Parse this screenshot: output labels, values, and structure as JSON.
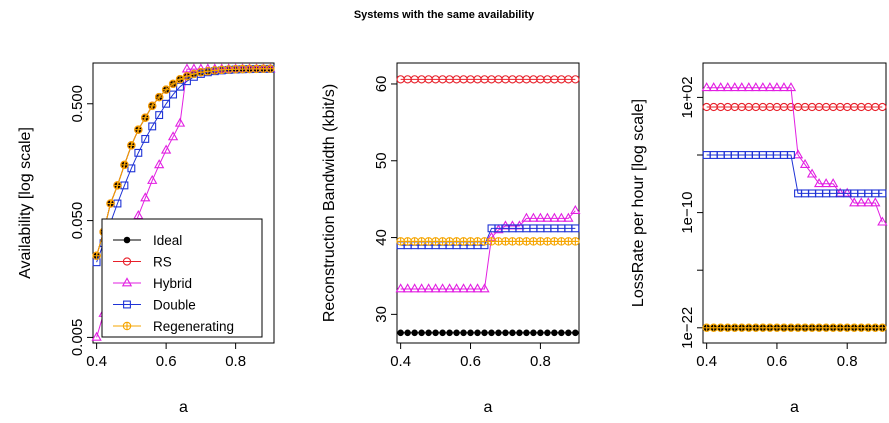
{
  "title": "Systems with the same availability",
  "colors": {
    "Ideal": "#000000",
    "RS": "#e8202a",
    "Hybrid": "#e21fe2",
    "Double": "#1f33d6",
    "Regenerating": "#f5a500"
  },
  "chart_data": [
    {
      "type": "line",
      "xlabel": "a",
      "ylabel": "Availability [log scale]",
      "log_y": true,
      "xlim": [
        0.4,
        0.9
      ],
      "ylim": [
        0.005,
        1.0
      ],
      "xticks": [
        0.4,
        0.6,
        0.8
      ],
      "xtick_labels": [
        "0.4",
        "0.6",
        "0.8"
      ],
      "yticks": [
        0.005,
        0.05,
        0.5
      ],
      "ytick_labels": [
        "0.005",
        "0.050",
        "0.500"
      ],
      "legend_position": "bottom-right",
      "x": [
        0.4,
        0.42,
        0.44,
        0.46,
        0.48,
        0.5,
        0.52,
        0.54,
        0.56,
        0.58,
        0.6,
        0.62,
        0.64,
        0.66,
        0.68,
        0.7,
        0.72,
        0.74,
        0.76,
        0.78,
        0.8,
        0.82,
        0.84,
        0.86,
        0.88,
        0.9
      ],
      "series": [
        {
          "name": "Ideal",
          "marker": "dot",
          "values": [
            0.025,
            0.04,
            0.07,
            0.1,
            0.15,
            0.22,
            0.3,
            0.38,
            0.48,
            0.57,
            0.66,
            0.74,
            0.81,
            0.86,
            0.9,
            0.93,
            0.95,
            0.965,
            0.975,
            0.983,
            0.988,
            0.991,
            0.993,
            0.995,
            0.996,
            0.997
          ]
        },
        {
          "name": "RS",
          "marker": "circle",
          "values": [
            0.025,
            0.04,
            0.07,
            0.1,
            0.15,
            0.22,
            0.3,
            0.38,
            0.48,
            0.57,
            0.66,
            0.74,
            0.81,
            0.86,
            0.9,
            0.93,
            0.95,
            0.965,
            0.975,
            0.983,
            0.988,
            0.991,
            0.993,
            0.995,
            0.996,
            0.997
          ]
        },
        {
          "name": "Hybrid",
          "marker": "triangle",
          "values": [
            0.005,
            0.008,
            0.012,
            0.018,
            0.026,
            0.038,
            0.055,
            0.078,
            0.11,
            0.15,
            0.2,
            0.26,
            0.34,
            0.99,
            0.99,
            0.99,
            0.99,
            0.99,
            0.99,
            0.99,
            0.99,
            0.99,
            0.99,
            0.99,
            0.99,
            0.99
          ]
        },
        {
          "name": "Double",
          "marker": "square",
          "values": [
            0.022,
            0.032,
            0.048,
            0.07,
            0.1,
            0.14,
            0.19,
            0.25,
            0.32,
            0.4,
            0.5,
            0.6,
            0.7,
            0.78,
            0.85,
            0.9,
            0.93,
            0.95,
            0.965,
            0.975,
            0.982,
            0.987,
            0.99,
            0.992,
            0.994,
            0.995
          ]
        },
        {
          "name": "Regenerating",
          "marker": "circle-plus",
          "values": [
            0.025,
            0.04,
            0.07,
            0.1,
            0.15,
            0.22,
            0.3,
            0.38,
            0.48,
            0.57,
            0.66,
            0.74,
            0.81,
            0.86,
            0.9,
            0.93,
            0.95,
            0.965,
            0.975,
            0.983,
            0.988,
            0.991,
            0.993,
            0.995,
            0.996,
            0.997
          ]
        }
      ]
    },
    {
      "type": "line",
      "xlabel": "a",
      "ylabel": "Reconstruction Bandwidth (kbit/s)",
      "log_y": false,
      "xlim": [
        0.4,
        0.9
      ],
      "ylim": [
        27,
        62
      ],
      "xticks": [
        0.4,
        0.6,
        0.8
      ],
      "xtick_labels": [
        "0.4",
        "0.6",
        "0.8"
      ],
      "yticks": [
        30,
        40,
        50,
        60
      ],
      "ytick_labels": [
        "30",
        "40",
        "50",
        "60"
      ],
      "x": [
        0.4,
        0.42,
        0.44,
        0.46,
        0.48,
        0.5,
        0.52,
        0.54,
        0.56,
        0.58,
        0.6,
        0.62,
        0.64,
        0.66,
        0.68,
        0.7,
        0.72,
        0.74,
        0.76,
        0.78,
        0.8,
        0.82,
        0.84,
        0.86,
        0.88,
        0.9
      ],
      "series": [
        {
          "name": "Ideal",
          "marker": "dot",
          "values": [
            27.6,
            27.6,
            27.6,
            27.6,
            27.6,
            27.6,
            27.6,
            27.6,
            27.6,
            27.6,
            27.6,
            27.6,
            27.6,
            27.6,
            27.6,
            27.6,
            27.6,
            27.6,
            27.6,
            27.6,
            27.6,
            27.6,
            27.6,
            27.6,
            27.6,
            27.6
          ]
        },
        {
          "name": "RS",
          "marker": "circle",
          "values": [
            60.6,
            60.6,
            60.6,
            60.6,
            60.6,
            60.6,
            60.6,
            60.6,
            60.6,
            60.6,
            60.6,
            60.6,
            60.6,
            60.6,
            60.6,
            60.6,
            60.6,
            60.6,
            60.6,
            60.6,
            60.6,
            60.6,
            60.6,
            60.6,
            60.6,
            60.6
          ]
        },
        {
          "name": "Hybrid",
          "marker": "triangle",
          "values": [
            33.3,
            33.3,
            33.3,
            33.3,
            33.3,
            33.3,
            33.3,
            33.3,
            33.3,
            33.3,
            33.3,
            33.3,
            33.3,
            40.0,
            41.0,
            41.5,
            41.5,
            41.5,
            42.5,
            42.5,
            42.5,
            42.5,
            42.5,
            42.5,
            42.5,
            43.5
          ]
        },
        {
          "name": "Double",
          "marker": "square",
          "values": [
            39.0,
            39.0,
            39.0,
            39.0,
            39.0,
            39.0,
            39.0,
            39.0,
            39.0,
            39.0,
            39.0,
            39.0,
            39.0,
            41.2,
            41.2,
            41.2,
            41.2,
            41.2,
            41.2,
            41.2,
            41.2,
            41.2,
            41.2,
            41.2,
            41.2,
            41.2
          ]
        },
        {
          "name": "Regenerating",
          "marker": "circle-plus",
          "values": [
            39.5,
            39.5,
            39.5,
            39.5,
            39.5,
            39.5,
            39.5,
            39.5,
            39.5,
            39.5,
            39.5,
            39.5,
            39.5,
            39.5,
            39.5,
            39.5,
            39.5,
            39.5,
            39.5,
            39.5,
            39.5,
            39.5,
            39.5,
            39.5,
            39.5,
            39.5
          ]
        }
      ]
    },
    {
      "type": "line",
      "xlabel": "a",
      "ylabel": "LossRate per hour [log scale]",
      "log_y": true,
      "xlim": [
        0.4,
        0.9
      ],
      "ylim": [
        1e-23,
        100000.0
      ],
      "xticks": [
        0.4,
        0.6,
        0.8
      ],
      "xtick_labels": [
        "0.4",
        "0.6",
        "0.8"
      ],
      "yticks": [
        1e-22,
        1e-16,
        1e-10,
        0.0001,
        100.0
      ],
      "ytick_labels": [
        "1e−22",
        "",
        "1e−10",
        "",
        "1e+02"
      ],
      "x": [
        0.4,
        0.42,
        0.44,
        0.46,
        0.48,
        0.5,
        0.52,
        0.54,
        0.56,
        0.58,
        0.6,
        0.62,
        0.64,
        0.66,
        0.68,
        0.7,
        0.72,
        0.74,
        0.76,
        0.78,
        0.8,
        0.82,
        0.84,
        0.86,
        0.88,
        0.9
      ],
      "series": [
        {
          "name": "Ideal",
          "marker": "dot",
          "values": [
            1e-22,
            1e-22,
            1e-22,
            1e-22,
            1e-22,
            1e-22,
            1e-22,
            1e-22,
            1e-22,
            1e-22,
            1e-22,
            1e-22,
            1e-22,
            1e-22,
            1e-22,
            1e-22,
            1e-22,
            1e-22,
            1e-22,
            1e-22,
            1e-22,
            1e-22,
            1e-22,
            1e-22,
            1e-22,
            1e-22
          ]
        },
        {
          "name": "RS",
          "marker": "circle",
          "values": [
            10,
            10,
            10,
            10,
            10,
            10,
            10,
            10,
            10,
            10,
            10,
            10,
            10,
            10,
            10,
            10,
            10,
            10,
            10,
            10,
            10,
            10,
            10,
            10,
            10,
            10
          ]
        },
        {
          "name": "Hybrid",
          "marker": "triangle",
          "values": [
            1000,
            1000,
            1000,
            1000,
            1000,
            1000,
            1000,
            1000,
            1000,
            1000,
            1000,
            1000,
            1000,
            0.0001,
            1e-05,
            1e-06,
            1e-07,
            1e-07,
            1e-07,
            1e-08,
            1e-08,
            1e-09,
            1e-09,
            1e-09,
            1e-09,
            1e-11
          ]
        },
        {
          "name": "Double",
          "marker": "square",
          "values": [
            0.0001,
            0.0001,
            0.0001,
            0.0001,
            0.0001,
            0.0001,
            0.0001,
            0.0001,
            0.0001,
            0.0001,
            0.0001,
            0.0001,
            0.0001,
            1e-08,
            1e-08,
            1e-08,
            1e-08,
            1e-08,
            1e-08,
            1e-08,
            1e-08,
            1e-08,
            1e-08,
            1e-08,
            1e-08,
            1e-08
          ]
        },
        {
          "name": "Regenerating",
          "marker": "circle-plus",
          "values": [
            1e-22,
            1e-22,
            1e-22,
            1e-22,
            1e-22,
            1e-22,
            1e-22,
            1e-22,
            1e-22,
            1e-22,
            1e-22,
            1e-22,
            1e-22,
            1e-22,
            1e-22,
            1e-22,
            1e-22,
            1e-22,
            1e-22,
            1e-22,
            1e-22,
            1e-22,
            1e-22,
            1e-22,
            1e-22,
            1e-22
          ]
        }
      ]
    }
  ]
}
